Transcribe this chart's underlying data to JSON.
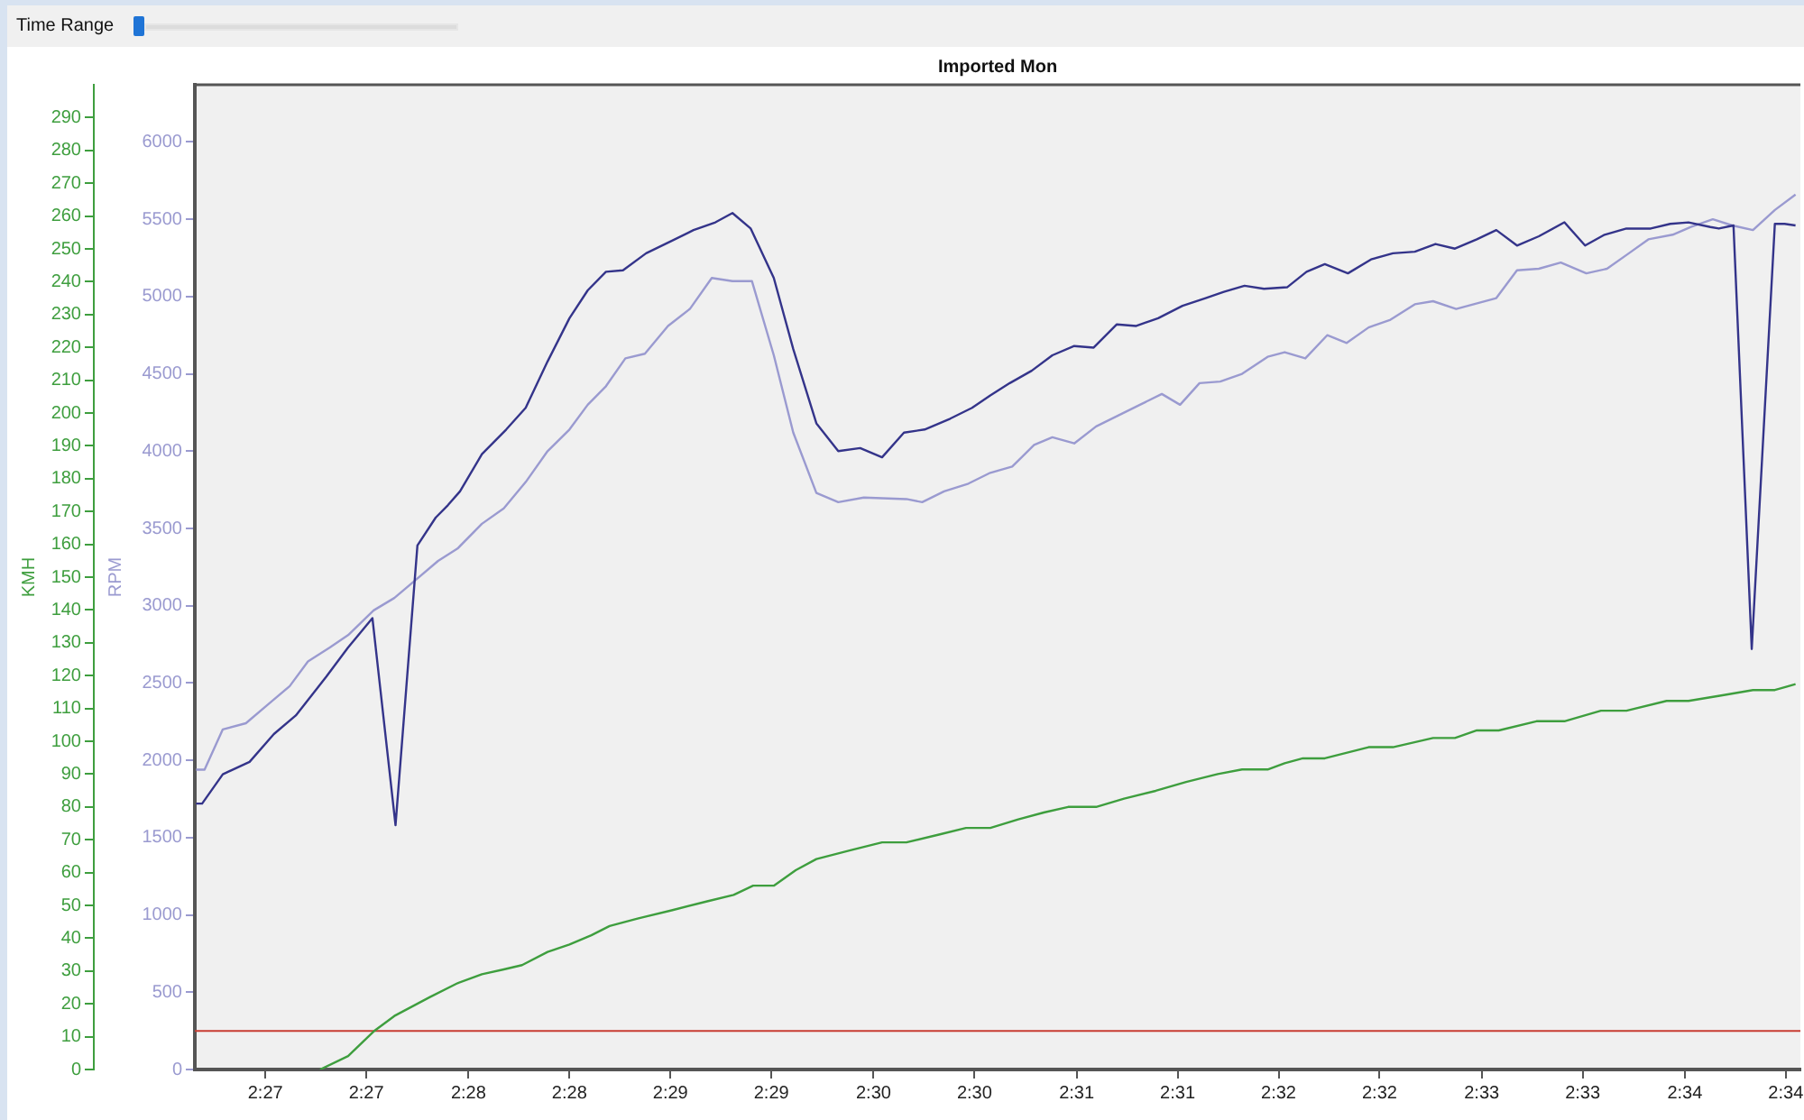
{
  "chart_data": {
    "type": "line",
    "title": "Imported Mon",
    "ylabel": "RPM",
    "y2label": "KMH",
    "annotations": [
      "Time Range"
    ],
    "xlim": [
      2.4442,
      2.5762
    ],
    "xticks": [
      {
        "value": 2.45,
        "label": "2:27"
      },
      {
        "value": 2.4583,
        "label": "2:27"
      },
      {
        "value": 2.4667,
        "label": "2:28"
      },
      {
        "value": 2.475,
        "label": "2:28"
      },
      {
        "value": 2.4833,
        "label": "2:29"
      },
      {
        "value": 2.4916,
        "label": "2:29"
      },
      {
        "value": 2.5,
        "label": "2:30"
      },
      {
        "value": 2.5083,
        "label": "2:30"
      },
      {
        "value": 2.5167,
        "label": "2:31"
      },
      {
        "value": 2.525,
        "label": "2:31"
      },
      {
        "value": 2.5333,
        "label": "2:32"
      },
      {
        "value": 2.5416,
        "label": "2:32"
      },
      {
        "value": 2.55,
        "label": "2:33"
      },
      {
        "value": 2.5583,
        "label": "2:33"
      },
      {
        "value": 2.5667,
        "label": "2:34"
      },
      {
        "value": 2.575,
        "label": "2:34"
      }
    ],
    "ylim": [
      0,
      6370
    ],
    "yticks": [
      0,
      500,
      1000,
      1500,
      2000,
      2500,
      3000,
      3500,
      4000,
      4500,
      5000,
      5500,
      6000
    ],
    "y2lim": [
      0,
      300
    ],
    "y2ticks": [
      0,
      10,
      20,
      30,
      40,
      50,
      60,
      70,
      80,
      90,
      100,
      110,
      120,
      130,
      140,
      150,
      160,
      170,
      180,
      190,
      200,
      210,
      220,
      230,
      240,
      250,
      260,
      270,
      280,
      290
    ],
    "series": [
      {
        "color": "#34348a",
        "x": [
          2.4443,
          2.4448,
          2.4465,
          2.4487,
          2.4507,
          2.4525,
          2.455,
          2.4568,
          2.4588,
          2.4607,
          2.4625,
          2.464,
          2.465,
          2.466,
          2.4678,
          2.4698,
          2.4714,
          2.4732,
          2.475,
          2.4765,
          2.478,
          2.4794,
          2.4813,
          2.4834,
          2.4852,
          2.487,
          2.4884,
          2.4899,
          2.4918,
          2.4934,
          2.4953,
          2.4971,
          2.4989,
          2.5007,
          2.5025,
          2.5042,
          2.5063,
          2.5081,
          2.5096,
          2.5112,
          2.513,
          2.5147,
          2.5165,
          2.5181,
          2.52,
          2.5216,
          2.5234,
          2.5254,
          2.5273,
          2.5288,
          2.5305,
          2.5321,
          2.534,
          2.5356,
          2.5371,
          2.539,
          2.5409,
          2.5427,
          2.5445,
          2.5462,
          2.5478,
          2.5496,
          2.5512,
          2.5529,
          2.5547,
          2.5568,
          2.5585,
          2.5601,
          2.5619,
          2.5639,
          2.5655,
          2.567,
          2.5688,
          2.5695,
          2.5707,
          2.5722,
          2.5741,
          2.5749,
          2.5758
        ],
        "values": [
          1720,
          1720,
          1910,
          1990,
          2170,
          2290,
          2540,
          2730,
          2920,
          1580,
          3390,
          3570,
          3650,
          3740,
          3980,
          4140,
          4280,
          4580,
          4860,
          5040,
          5160,
          5170,
          5280,
          5360,
          5430,
          5480,
          5540,
          5440,
          5120,
          4660,
          4180,
          4000,
          4020,
          3960,
          4120,
          4140,
          4210,
          4280,
          4360,
          4440,
          4520,
          4620,
          4680,
          4670,
          4820,
          4810,
          4860,
          4940,
          4990,
          5030,
          5070,
          5050,
          5060,
          5160,
          5210,
          5150,
          5240,
          5280,
          5290,
          5340,
          5310,
          5370,
          5430,
          5330,
          5390,
          5480,
          5330,
          5400,
          5440,
          5440,
          5470,
          5480,
          5450,
          5440,
          5460,
          2720,
          5470,
          5470,
          5460
        ]
      },
      {
        "color": "#9a9ad0",
        "x": [
          2.4443,
          2.445,
          2.4465,
          2.4484,
          2.4502,
          2.452,
          2.4535,
          2.4553,
          2.4568,
          2.4589,
          2.4606,
          2.4624,
          2.4642,
          2.4658,
          2.4678,
          2.4696,
          2.4714,
          2.4732,
          2.475,
          2.4765,
          2.478,
          2.4796,
          2.4812,
          2.4831,
          2.4849,
          2.4867,
          2.4884,
          2.49,
          2.4918,
          2.4934,
          2.4953,
          2.4971,
          2.4992,
          2.5027,
          2.504,
          2.5058,
          2.5078,
          2.5096,
          2.5114,
          2.5132,
          2.5147,
          2.5165,
          2.5183,
          2.5201,
          2.5219,
          2.5237,
          2.5252,
          2.5268,
          2.5285,
          2.5303,
          2.5324,
          2.5338,
          2.5355,
          2.5373,
          2.5389,
          2.5407,
          2.5425,
          2.5445,
          2.546,
          2.5479,
          2.5512,
          2.5529,
          2.5547,
          2.5565,
          2.5586,
          2.5603,
          2.5621,
          2.5637,
          2.5657,
          2.5672,
          2.569,
          2.5706,
          2.5723,
          2.5741,
          2.5758
        ],
        "values": [
          1940,
          1940,
          2200,
          2240,
          2360,
          2480,
          2640,
          2730,
          2810,
          2970,
          3050,
          3170,
          3290,
          3370,
          3530,
          3630,
          3800,
          4000,
          4140,
          4300,
          4420,
          4600,
          4630,
          4810,
          4920,
          5120,
          5100,
          5100,
          4620,
          4120,
          3730,
          3670,
          3700,
          3690,
          3670,
          3740,
          3790,
          3860,
          3900,
          4040,
          4090,
          4050,
          4160,
          4230,
          4300,
          4370,
          4300,
          4440,
          4450,
          4500,
          4610,
          4640,
          4600,
          4750,
          4700,
          4800,
          4850,
          4950,
          4970,
          4920,
          4990,
          5170,
          5180,
          5220,
          5150,
          5180,
          5280,
          5370,
          5400,
          5450,
          5500,
          5460,
          5430,
          5560,
          5660
        ]
      },
      {
        "color": "#3e9e3e",
        "axis": "y2",
        "x": [
          2.4545,
          2.4568,
          2.4589,
          2.4606,
          2.4635,
          2.4658,
          2.4678,
          2.4696,
          2.4711,
          2.4732,
          2.475,
          2.4768,
          2.4783,
          2.4806,
          2.4834,
          2.4864,
          2.4885,
          2.4901,
          2.4918,
          2.4936,
          2.4953,
          2.4981,
          2.5007,
          2.5027,
          2.5053,
          2.5076,
          2.5096,
          2.5119,
          2.514,
          2.516,
          2.5183,
          2.5206,
          2.5232,
          2.5257,
          2.5283,
          2.5303,
          2.5324,
          2.5338,
          2.5353,
          2.5371,
          2.5407,
          2.5427,
          2.546,
          2.5478,
          2.5496,
          2.5514,
          2.5545,
          2.5568,
          2.5598,
          2.5619,
          2.5652,
          2.567,
          2.5698,
          2.5723,
          2.5741,
          2.5758
        ],
        "values": [
          0,
          4.1,
          11.6,
          16.3,
          22.0,
          26.3,
          29.0,
          30.5,
          31.8,
          35.8,
          38.1,
          40.9,
          43.7,
          46.0,
          48.5,
          51.3,
          53.2,
          56.0,
          56.0,
          60.7,
          64.1,
          66.8,
          69.2,
          69.2,
          71.5,
          73.6,
          73.6,
          76.2,
          78.3,
          80.0,
          80.0,
          82.5,
          84.9,
          87.6,
          90.0,
          91.4,
          91.4,
          93.3,
          94.8,
          94.8,
          98.2,
          98.2,
          101.0,
          101.0,
          103.3,
          103.3,
          106.1,
          106.1,
          109.3,
          109.3,
          112.3,
          112.3,
          114.0,
          115.6,
          115.6,
          117.4
        ]
      }
    ],
    "ref_lines": [
      {
        "axis": "y",
        "value": 250,
        "color": "#c83c32"
      }
    ]
  }
}
